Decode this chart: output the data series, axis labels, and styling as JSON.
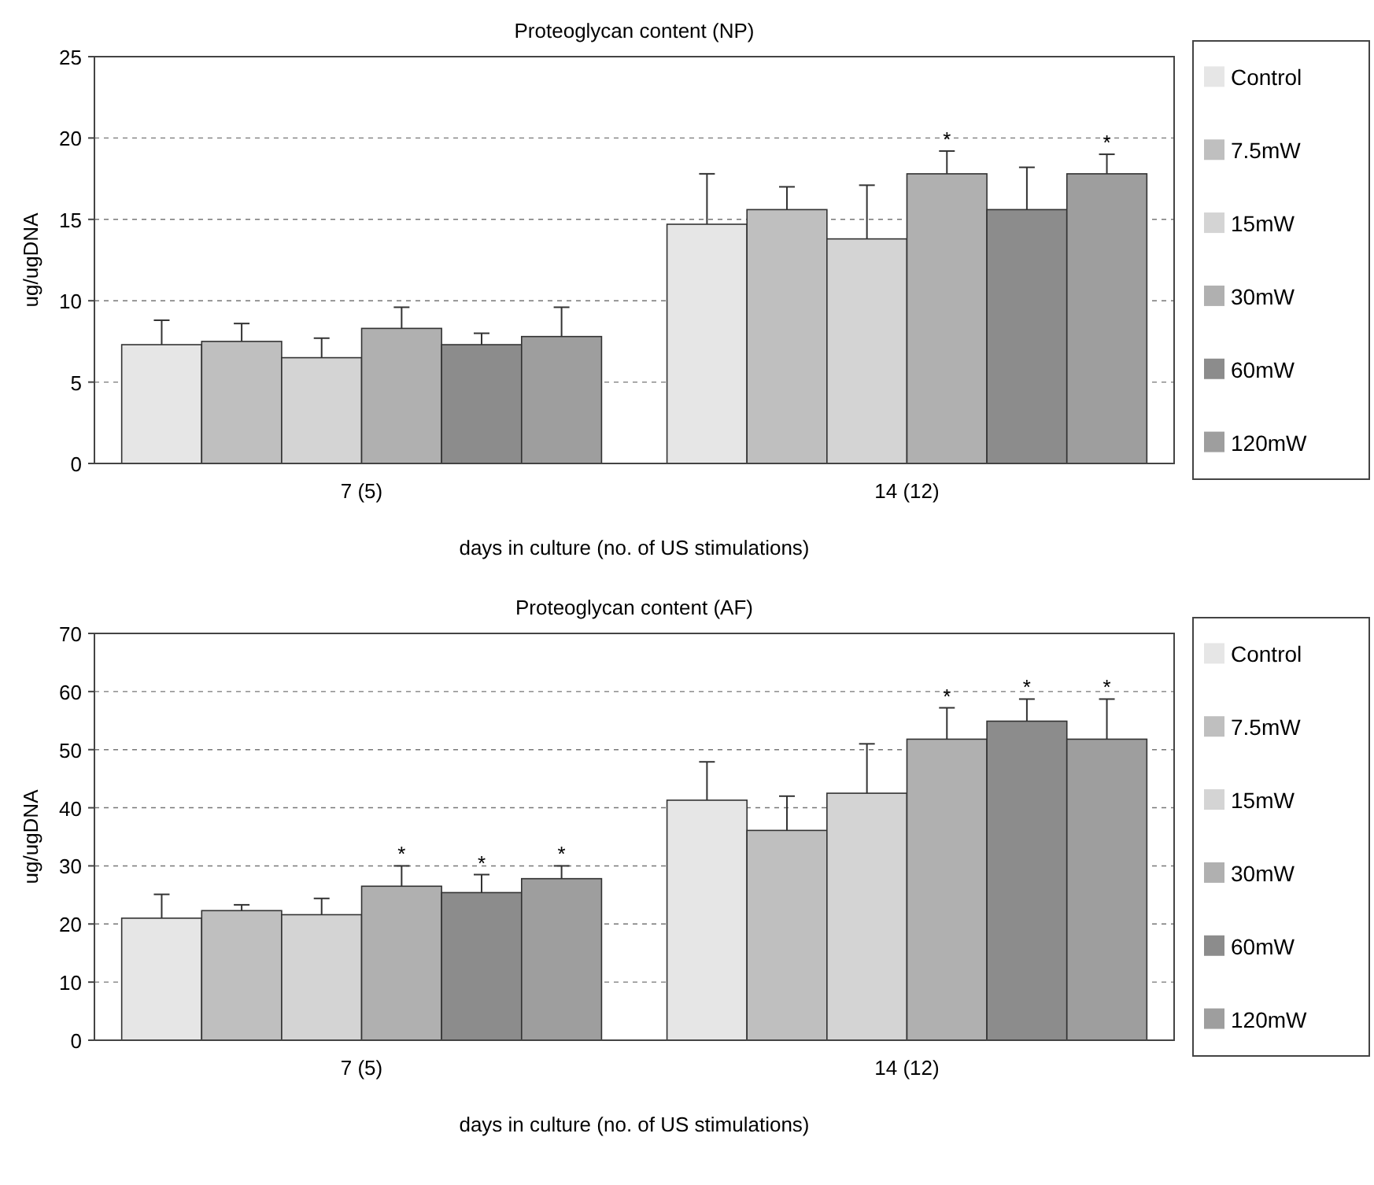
{
  "chart_data": [
    {
      "type": "bar",
      "title": "Proteoglycan content (NP)",
      "xlabel": "days in culture (no. of US stimulations)",
      "ylabel": "ug/ugDNA",
      "categories": [
        "7 (5)",
        "14 (12)"
      ],
      "ylim": [
        0,
        25
      ],
      "yticks": [
        0,
        5,
        10,
        15,
        20,
        25
      ],
      "grid": "y",
      "legend": "right",
      "series": [
        {
          "name": "Control",
          "color": "#e6e6e6",
          "values": [
            7.3,
            14.7
          ],
          "errors": [
            1.5,
            3.1
          ]
        },
        {
          "name": "7.5mW",
          "color": "#bfbfbf",
          "values": [
            7.5,
            15.6
          ],
          "errors": [
            1.1,
            1.4
          ]
        },
        {
          "name": "15mW",
          "color": "#d4d4d4",
          "values": [
            6.5,
            13.8
          ],
          "errors": [
            1.2,
            3.3
          ]
        },
        {
          "name": "30mW",
          "color": "#b0b0b0",
          "values": [
            8.3,
            17.8
          ],
          "errors": [
            1.3,
            1.4
          ],
          "value_labels": [
            null,
            "*"
          ]
        },
        {
          "name": "60mW",
          "color": "#8c8c8c",
          "values": [
            7.3,
            15.6
          ],
          "errors": [
            0.7,
            2.6
          ]
        },
        {
          "name": "120mW",
          "color": "#9e9e9e",
          "values": [
            7.8,
            17.8
          ],
          "errors": [
            1.8,
            1.2
          ],
          "value_labels": [
            null,
            "*"
          ]
        }
      ]
    },
    {
      "type": "bar",
      "title": "Proteoglycan content (AF)",
      "xlabel": "days in culture (no. of US stimulations)",
      "ylabel": "ug/ugDNA",
      "categories": [
        "7 (5)",
        "14 (12)"
      ],
      "ylim": [
        0,
        70
      ],
      "yticks": [
        0,
        10,
        20,
        30,
        40,
        50,
        60,
        70
      ],
      "grid": "y",
      "legend": "right",
      "series": [
        {
          "name": "Control",
          "color": "#e6e6e6",
          "values": [
            21,
            41.3
          ],
          "errors": [
            4.1,
            6.6
          ]
        },
        {
          "name": "7.5mW",
          "color": "#bfbfbf",
          "values": [
            22.3,
            36.1
          ],
          "errors": [
            1,
            5.9
          ]
        },
        {
          "name": "15mW",
          "color": "#d4d4d4",
          "values": [
            21.6,
            42.5
          ],
          "errors": [
            2.8,
            8.5
          ]
        },
        {
          "name": "30mW",
          "color": "#b0b0b0",
          "values": [
            26.5,
            51.8
          ],
          "errors": [
            3.5,
            5.4
          ],
          "value_labels": [
            "*",
            "*"
          ]
        },
        {
          "name": "60mW",
          "color": "#8c8c8c",
          "values": [
            25.4,
            54.9
          ],
          "errors": [
            3.1,
            3.8
          ],
          "value_labels": [
            "*",
            "*"
          ]
        },
        {
          "name": "120mW",
          "color": "#9e9e9e",
          "values": [
            27.8,
            51.8
          ],
          "errors": [
            2.2,
            6.9
          ],
          "value_labels": [
            "*",
            "*"
          ]
        }
      ]
    }
  ]
}
